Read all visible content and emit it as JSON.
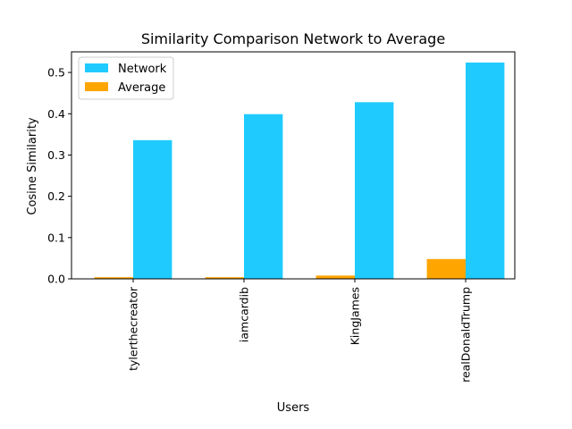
{
  "chart_data": {
    "type": "bar",
    "title": "Similarity Comparison Network to Average",
    "xlabel": "Users",
    "ylabel": "Cosine Similarity",
    "categories": [
      "tylerthecreator",
      "iamcardib",
      "KingJames",
      "realDonaldTrump"
    ],
    "series": [
      {
        "name": "Network",
        "color": "#1fcbfe",
        "values": [
          0.336,
          0.399,
          0.428,
          0.524
        ]
      },
      {
        "name": "Average",
        "color": "#ffa500",
        "values": [
          0.004,
          0.004,
          0.008,
          0.048
        ]
      }
    ],
    "ylim": [
      0,
      0.55
    ],
    "yticks": [
      0.0,
      0.1,
      0.2,
      0.3,
      0.4,
      0.5
    ],
    "ytick_labels": [
      "0.0",
      "0.1",
      "0.2",
      "0.3",
      "0.4",
      "0.5"
    ],
    "legend_position": "upper-left",
    "grid": false
  }
}
